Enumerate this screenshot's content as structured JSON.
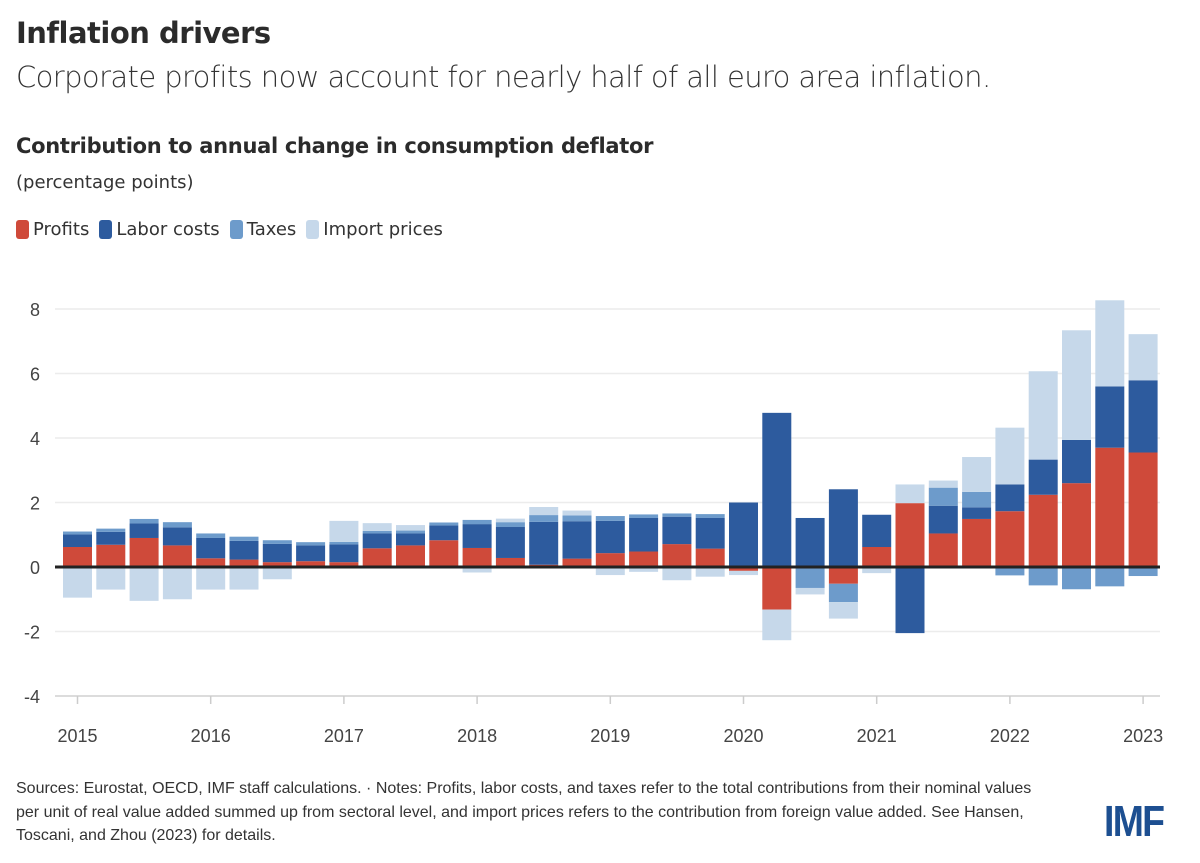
{
  "header": {
    "title": "Inflation drivers",
    "subtitle": "Corporate profits now account for nearly half of all euro area inflation."
  },
  "chart_data": {
    "type": "bar",
    "stacked": true,
    "title": "Contribution to annual change in consumption deflator",
    "ylabel": "(percentage points)",
    "xlabel": "",
    "ylim": [
      -4,
      8.5
    ],
    "yticks": [
      -4,
      -2,
      0,
      2,
      4,
      6,
      8
    ],
    "xtick_labels": [
      "2015",
      "2016",
      "2017",
      "2018",
      "2019",
      "2020",
      "2021",
      "2022",
      "2023"
    ],
    "grid": true,
    "legend_position": "top-left",
    "categories": [
      "2015Q1",
      "2015Q2",
      "2015Q3",
      "2015Q4",
      "2016Q1",
      "2016Q2",
      "2016Q3",
      "2016Q4",
      "2017Q1",
      "2017Q2",
      "2017Q3",
      "2017Q4",
      "2018Q1",
      "2018Q2",
      "2018Q3",
      "2018Q4",
      "2019Q1",
      "2019Q2",
      "2019Q3",
      "2019Q4",
      "2020Q1",
      "2020Q2",
      "2020Q3",
      "2020Q4",
      "2021Q1",
      "2021Q2",
      "2021Q3",
      "2021Q4",
      "2022Q1",
      "2022Q2",
      "2022Q3",
      "2022Q4",
      "2023Q1"
    ],
    "series": [
      {
        "name": "Profits",
        "color": "#cf4a3a",
        "values": [
          0.62,
          0.69,
          0.9,
          0.67,
          0.27,
          0.23,
          0.15,
          0.18,
          0.15,
          0.58,
          0.67,
          0.83,
          0.59,
          0.28,
          0.07,
          0.26,
          0.43,
          0.48,
          0.71,
          0.57,
          -0.12,
          -1.32,
          0.0,
          -0.52,
          0.62,
          1.98,
          1.04,
          1.49,
          1.73,
          2.24,
          2.6,
          3.7,
          3.55
        ]
      },
      {
        "name": "Labor costs",
        "color": "#2d5b9e",
        "values": [
          0.39,
          0.4,
          0.45,
          0.56,
          0.63,
          0.58,
          0.57,
          0.49,
          0.55,
          0.46,
          0.37,
          0.46,
          0.74,
          0.96,
          1.33,
          1.16,
          1.0,
          1.04,
          0.85,
          0.95,
          2.0,
          4.78,
          1.52,
          2.41,
          1.0,
          -2.05,
          0.86,
          0.36,
          0.83,
          1.09,
          1.34,
          1.9,
          2.24
        ]
      },
      {
        "name": "Taxes",
        "color": "#6d9bcb",
        "values": [
          0.09,
          0.1,
          0.14,
          0.16,
          0.14,
          0.13,
          0.11,
          0.1,
          0.08,
          0.08,
          0.09,
          0.09,
          0.13,
          0.15,
          0.21,
          0.18,
          0.15,
          0.11,
          0.1,
          0.12,
          0.0,
          0.0,
          -0.65,
          -0.57,
          0.0,
          0.0,
          0.56,
          0.48,
          -0.26,
          -0.57,
          -0.69,
          -0.6,
          -0.28
        ]
      },
      {
        "name": "Import prices",
        "color": "#c6d8ea",
        "values": [
          -0.95,
          -0.7,
          -1.05,
          -1.0,
          -0.7,
          -0.7,
          -0.38,
          0.0,
          0.65,
          0.24,
          0.17,
          0.0,
          -0.17,
          0.11,
          0.25,
          0.15,
          -0.25,
          -0.15,
          -0.41,
          -0.3,
          -0.13,
          -0.95,
          -0.2,
          -0.51,
          -0.19,
          0.58,
          0.22,
          1.08,
          1.76,
          2.74,
          3.4,
          2.67,
          1.43
        ]
      }
    ]
  },
  "footer": {
    "notes": "Sources: Eurostat, OECD, IMF staff calculations. · Notes: Profits, labor costs, and taxes refer to the total contributions from their nominal values per unit of real value added summed up from sectoral level, and import prices refers to the contribution from foreign value added. See Hansen, Toscani, and Zhou (2023) for details.",
    "logo": "IMF"
  }
}
